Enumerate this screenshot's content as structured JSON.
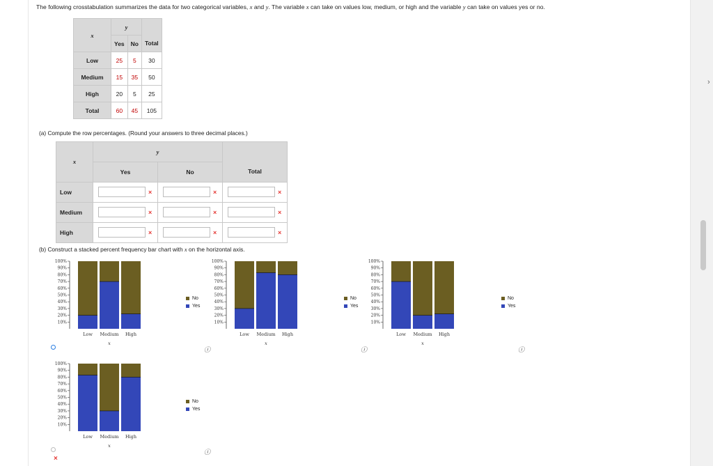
{
  "intro": {
    "prefix": "The following crosstabulation summarizes the data for two categorical variables, ",
    "x": "x",
    "mid1": " and ",
    "y": "y",
    "mid2": ". The variable ",
    "x2": "x",
    "mid3": " can take on values low, medium, or high and the variable ",
    "y2": "y",
    "suffix": " can take on values yes or no."
  },
  "crosstab": {
    "y_label": "y",
    "x_label": "x",
    "headers": [
      "Yes",
      "No",
      "Total"
    ],
    "rows": [
      {
        "label": "Low",
        "yes": "25",
        "no": "5",
        "total": "30"
      },
      {
        "label": "Medium",
        "yes": "15",
        "no": "35",
        "total": "50"
      },
      {
        "label": "High",
        "yes": "20",
        "no": "5",
        "total": "25"
      },
      {
        "label": "Total",
        "yes": "60",
        "no": "45",
        "total": "105"
      }
    ]
  },
  "part_a": {
    "prompt": "(a)  Compute the row percentages. (Round your answers to three decimal places.)",
    "y_label": "y",
    "x_label": "x",
    "headers": [
      "Yes",
      "No",
      "Total"
    ],
    "rows": [
      {
        "label": "Low",
        "yes": "",
        "no": "",
        "total": ""
      },
      {
        "label": "Medium",
        "yes": "",
        "no": "",
        "total": ""
      },
      {
        "label": "High",
        "yes": "",
        "no": "",
        "total": ""
      }
    ],
    "mark": "×"
  },
  "part_b": {
    "prompt_a": "(b)  Construct a stacked percent frequency bar chart with ",
    "prompt_x": "x",
    "prompt_b": " on the horizontal axis."
  },
  "legend": {
    "no": "No",
    "yes": "Yes"
  },
  "colors": {
    "yes": "#3347b8",
    "no": "#6b5e22"
  },
  "info_icon": "info-icon",
  "wrong_mark": "×",
  "chart_data": [
    {
      "type": "bar",
      "stacked": true,
      "categories": [
        "Low",
        "Medium",
        "High"
      ],
      "xlabel": "x",
      "ylim": [
        0,
        100
      ],
      "series": [
        {
          "name": "Yes",
          "values": [
            20,
            70,
            22
          ]
        },
        {
          "name": "No",
          "values": [
            80,
            30,
            78
          ]
        }
      ]
    },
    {
      "type": "bar",
      "stacked": true,
      "categories": [
        "Low",
        "Medium",
        "High"
      ],
      "xlabel": "x",
      "ylim": [
        0,
        100
      ],
      "series": [
        {
          "name": "Yes",
          "values": [
            30,
            83,
            80
          ]
        },
        {
          "name": "No",
          "values": [
            70,
            17,
            20
          ]
        }
      ]
    },
    {
      "type": "bar",
      "stacked": true,
      "categories": [
        "Low",
        "Medium",
        "High"
      ],
      "xlabel": "x",
      "ylim": [
        0,
        100
      ],
      "series": [
        {
          "name": "Yes",
          "values": [
            70,
            20,
            22
          ]
        },
        {
          "name": "No",
          "values": [
            30,
            80,
            78
          ]
        }
      ]
    },
    {
      "type": "bar",
      "stacked": true,
      "categories": [
        "Low",
        "Medium",
        "High"
      ],
      "xlabel": "x",
      "ylim": [
        0,
        100
      ],
      "series": [
        {
          "name": "Yes",
          "values": [
            83,
            30,
            80
          ]
        },
        {
          "name": "No",
          "values": [
            17,
            70,
            20
          ]
        }
      ]
    }
  ]
}
